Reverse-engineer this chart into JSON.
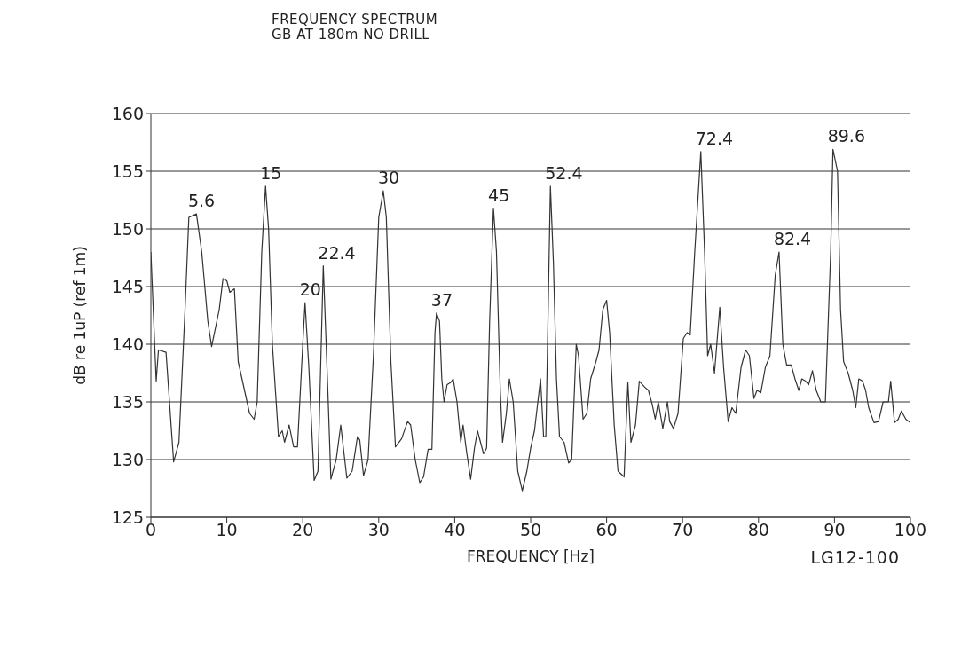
{
  "chart_data": {
    "type": "line",
    "title": "FREQUENCY SPECTRUM",
    "subtitle": "GB AT 180m NO DRILL",
    "xlabel": "FREQUENCY [Hz]",
    "ylabel": "dB re 1uP (ref 1m)",
    "xlim": [
      0,
      100
    ],
    "xticks": [
      0,
      10,
      20,
      30,
      40,
      50,
      60,
      70,
      80,
      90,
      100
    ],
    "ylim": [
      125,
      160
    ],
    "yticks": [
      125,
      130,
      135,
      140,
      145,
      150,
      155,
      160
    ],
    "grid": "y",
    "legend": false,
    "marker": "none",
    "line_style": "solid",
    "series": [
      {
        "color": "#333333",
        "x": [
          0,
          0.7,
          1,
          2,
          3,
          3.7,
          4.5,
          5,
          6,
          6.7,
          7.5,
          8,
          9,
          9.5,
          10,
          10.4,
          11,
          11.5,
          12,
          13,
          13.6,
          14,
          14.6,
          15.1,
          15.5,
          16,
          16.8,
          17.3,
          17.6,
          18.2,
          18.8,
          19.3,
          20,
          20.3,
          20.8,
          21.5,
          22,
          22.7,
          23.3,
          23.7,
          24.4,
          25,
          25.8,
          26.5,
          27.2,
          27.5,
          28,
          28.6,
          29.3,
          30,
          30.6,
          31,
          31.6,
          32.2,
          33,
          33.8,
          34.2,
          34.8,
          35.4,
          35.9,
          36.5,
          37,
          37.4,
          37.6,
          38,
          38.3,
          38.6,
          39,
          39.5,
          39.8,
          40.3,
          40.8,
          41.1,
          41.6,
          42.1,
          42.6,
          43,
          43.4,
          43.8,
          44.2,
          44.6,
          45.1,
          45.5,
          46,
          46.3,
          46.8,
          47.2,
          47.7,
          48.3,
          48.9,
          49.5,
          50,
          50.5,
          51.3,
          51.7,
          52,
          52.6,
          53,
          53.4,
          53.8,
          54.4,
          55,
          55.4,
          56,
          56.3,
          56.9,
          57.4,
          57.9,
          58.6,
          59,
          59.5,
          60,
          60.4,
          61,
          61.5,
          62.3,
          62.8,
          63.2,
          63.8,
          64.3,
          65,
          65.5,
          66,
          66.4,
          66.8,
          67.4,
          68,
          68.3,
          68.8,
          69.4,
          70.1,
          70.6,
          71,
          71.6,
          72.4,
          72.9,
          73.3,
          73.7,
          74.2,
          74.9,
          75.4,
          76,
          76.5,
          77,
          77.7,
          78.3,
          78.8,
          79.4,
          79.8,
          80.3,
          80.9,
          81.5,
          82.2,
          82.7,
          83.2,
          83.7,
          84.3,
          84.8,
          85.3,
          85.7,
          86.2,
          86.6,
          87.1,
          87.6,
          88.2,
          88.8,
          89.5,
          89.8,
          90.4,
          90.8,
          91.2,
          91.8,
          92.4,
          92.8,
          93.2,
          93.7,
          94.1,
          94.5,
          95.2,
          95.8,
          96.4,
          97.1,
          97.4,
          97.9,
          98.4,
          98.8,
          99.4,
          100
        ],
        "values": [
          148,
          136.8,
          139.5,
          139.3,
          129.8,
          131.5,
          143,
          151,
          151.3,
          148,
          142,
          139.8,
          143,
          145.7,
          145.5,
          144.5,
          144.8,
          138.5,
          137,
          134,
          133.5,
          135,
          148,
          153.7,
          150,
          140,
          132,
          132.5,
          131.5,
          133,
          131.1,
          131.1,
          140,
          143.6,
          138,
          128.2,
          129,
          146.8,
          136,
          128.3,
          130,
          133,
          128.4,
          129,
          132,
          131.7,
          128.6,
          130,
          139,
          151,
          153.3,
          151,
          138.5,
          131.1,
          131.8,
          133.3,
          133,
          130,
          128,
          128.5,
          130.9,
          130.9,
          141,
          142.7,
          142,
          137,
          135,
          136.5,
          136.7,
          137,
          135,
          131.5,
          133,
          130.5,
          128.3,
          131,
          132.5,
          131.5,
          130.5,
          131,
          142,
          151.8,
          148,
          136,
          131.5,
          134,
          137,
          135,
          129,
          127.3,
          129,
          131,
          132.5,
          137,
          132,
          132,
          153.7,
          147,
          137,
          132,
          131.5,
          129.7,
          130,
          140,
          139,
          133.5,
          134,
          137,
          138.5,
          139.5,
          143,
          143.8,
          141,
          133,
          129,
          128.5,
          136.7,
          131.5,
          133,
          136.8,
          136.3,
          136,
          134.8,
          133.5,
          135,
          132.7,
          135,
          133.3,
          132.7,
          134,
          140.5,
          141,
          140.8,
          148,
          156.7,
          148,
          139,
          140,
          137.5,
          143.2,
          138,
          133.3,
          134.5,
          134,
          138,
          139.5,
          139,
          135.3,
          136,
          135.8,
          138,
          139,
          146,
          148,
          140,
          138.2,
          138.2,
          137,
          136,
          137,
          136.8,
          136.5,
          137.7,
          136,
          135,
          135,
          148,
          156.9,
          155,
          143,
          138.5,
          137.5,
          136,
          134.5,
          137,
          136.8,
          136,
          134.5,
          133.2,
          133.3,
          135,
          135,
          136.8,
          133.2,
          133.5,
          134.2,
          133.5,
          133.2
        ]
      }
    ],
    "annotations": [
      {
        "text": "5.6",
        "x": 5.6,
        "y": 151.3
      },
      {
        "text": "15",
        "x": 15.1,
        "y": 153.7
      },
      {
        "text": "20",
        "x": 20.3,
        "y": 143.6
      },
      {
        "text": "22.4",
        "x": 22.7,
        "y": 146.8
      },
      {
        "text": "30",
        "x": 30.6,
        "y": 153.3
      },
      {
        "text": "37",
        "x": 37.6,
        "y": 142.7
      },
      {
        "text": "45",
        "x": 45.1,
        "y": 151.8
      },
      {
        "text": "52.4",
        "x": 52.6,
        "y": 153.7
      },
      {
        "text": "72.4",
        "x": 72.4,
        "y": 156.7
      },
      {
        "text": "82.4",
        "x": 82.7,
        "y": 148
      },
      {
        "text": "89.6",
        "x": 89.8,
        "y": 156.9
      },
      "LG12-100"
    ]
  }
}
